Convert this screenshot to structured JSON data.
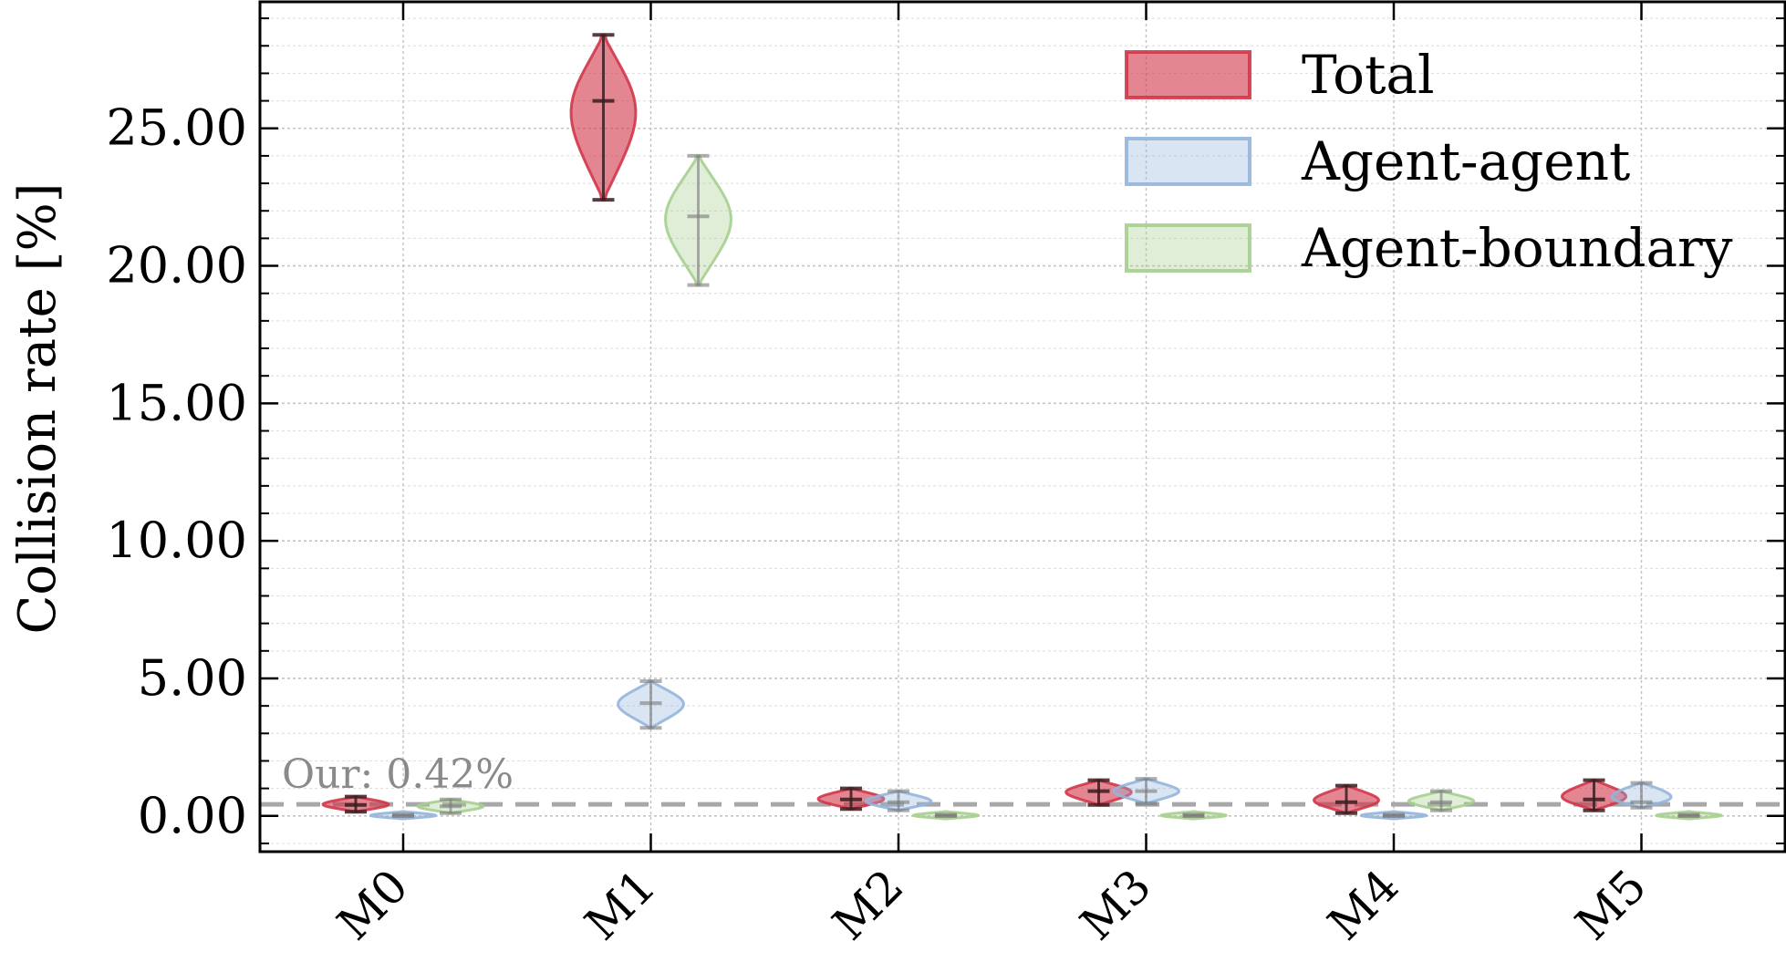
{
  "chart_data": {
    "type": "violin",
    "ylabel": "Collision rate [%]",
    "xlabel": "",
    "title": "",
    "ylim": [
      -1.3,
      29.6
    ],
    "yticks": [
      "0.00",
      "5.00",
      "10.00",
      "15.00",
      "20.00",
      "25.00"
    ],
    "ytick_values": [
      0,
      5,
      10,
      15,
      20,
      25
    ],
    "grid": true,
    "legend_position": "top-right",
    "categories": [
      "M0",
      "M1",
      "M2",
      "M3",
      "M4",
      "M5"
    ],
    "reference_line": {
      "value": 0.42,
      "label": "Our: 0.42%"
    },
    "series": [
      {
        "name": "Total",
        "color": "#d1364a",
        "values": [
          {
            "min": 0.15,
            "median": 0.4,
            "max": 0.7
          },
          {
            "min": 22.4,
            "median": 26.0,
            "max": 28.4
          },
          {
            "min": 0.25,
            "median": 0.6,
            "max": 1.0
          },
          {
            "min": 0.4,
            "median": 0.9,
            "max": 1.3
          },
          {
            "min": 0.1,
            "median": 0.5,
            "max": 1.1
          },
          {
            "min": 0.2,
            "median": 0.6,
            "max": 1.3
          }
        ]
      },
      {
        "name": "Agent-agent",
        "color": "#93b5dc",
        "values": [
          {
            "min": 0.0,
            "median": 0.0,
            "max": 0.05
          },
          {
            "min": 3.2,
            "median": 4.1,
            "max": 4.9
          },
          {
            "min": 0.2,
            "median": 0.5,
            "max": 0.9
          },
          {
            "min": 0.45,
            "median": 0.9,
            "max": 1.35
          },
          {
            "min": 0.0,
            "median": 0.0,
            "max": 0.05
          },
          {
            "min": 0.3,
            "median": 0.5,
            "max": 1.2
          }
        ]
      },
      {
        "name": "Agent-boundary",
        "color": "#a6cf8f",
        "values": [
          {
            "min": 0.1,
            "median": 0.35,
            "max": 0.6
          },
          {
            "min": 19.3,
            "median": 21.8,
            "max": 24.0
          },
          {
            "min": 0.0,
            "median": 0.0,
            "max": 0.05
          },
          {
            "min": 0.0,
            "median": 0.0,
            "max": 0.05
          },
          {
            "min": 0.2,
            "median": 0.5,
            "max": 0.9
          },
          {
            "min": 0.0,
            "median": 0.0,
            "max": 0.05
          }
        ]
      }
    ]
  }
}
